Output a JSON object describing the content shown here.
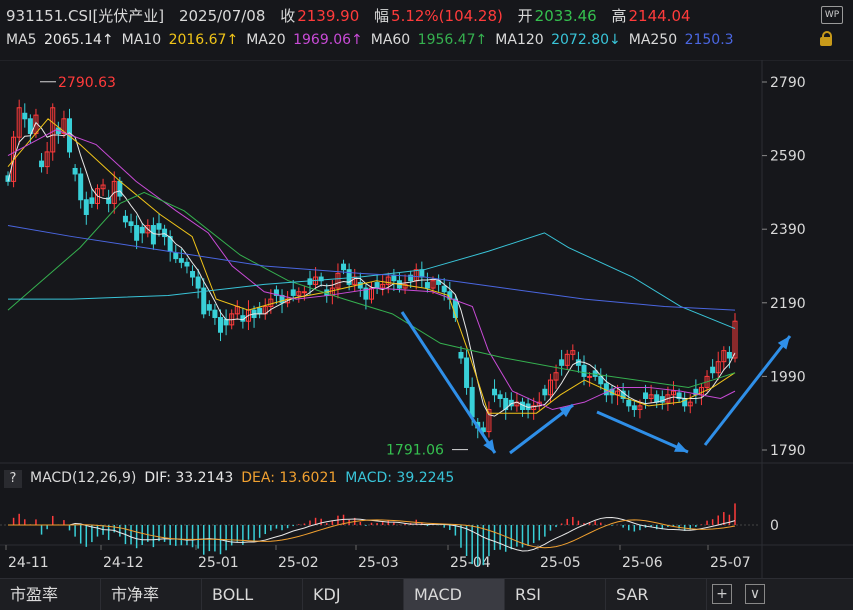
{
  "header": {
    "code": "931151.CSI[光伏产业]",
    "date": "2025/07/08",
    "close_label": "收",
    "close_value": "2139.90",
    "change_label": "幅",
    "change_value": "5.12%(104.28)",
    "open_label": "开",
    "open_value": "2033.46",
    "high_label": "高",
    "high_value": "2144.04",
    "ma": [
      {
        "label": "MA5",
        "value": "2065.14↑",
        "color": "#e8e8e8"
      },
      {
        "label": "MA10",
        "value": "2016.67↑",
        "color": "#f0c419"
      },
      {
        "label": "MA20",
        "value": "1969.06↑",
        "color": "#c84bd6"
      },
      {
        "label": "MA60",
        "value": "1956.47↑",
        "color": "#35b04f"
      },
      {
        "label": "MA120",
        "value": "2072.80↓",
        "color": "#39c4d8"
      },
      {
        "label": "MA250",
        "value": "2150.3",
        "color": "#4a66e0"
      }
    ],
    "value_colors": {
      "close": "#ff3b3b",
      "change": "#ff3b3b",
      "open": "#35c04f",
      "high": "#ff3b3b",
      "mavalue": "#f0c419",
      "ma10value": "#f0c419"
    }
  },
  "icons": {
    "wp": "WP",
    "lock": "lock-icon"
  },
  "chart_data": [
    {
      "type": "candlestick",
      "x_ticks": [
        "24-11",
        "24-12",
        "25-01",
        "25-02",
        "25-03",
        "25-04",
        "25-05",
        "25-06",
        "25-07"
      ],
      "y_ticks": [
        2790,
        2590,
        2390,
        2190,
        1990,
        1790
      ],
      "ylim": [
        1770,
        2830
      ],
      "annotations": [
        {
          "text": "2790.63",
          "value": 2790.63,
          "color": "#ff3b3b"
        },
        {
          "text": "1791.06",
          "value": 1791.06,
          "color": "#35c04f"
        }
      ],
      "close_series": [
        2520,
        2640,
        2720,
        2690,
        2650,
        2700,
        2560,
        2600,
        2720,
        2650,
        2690,
        2600,
        2540,
        2470,
        2430,
        2460,
        2500,
        2510,
        2460,
        2520,
        2480,
        2410,
        2400,
        2360,
        2380,
        2400,
        2350,
        2390,
        2370,
        2330,
        2310,
        2300,
        2290,
        2260,
        2230,
        2160,
        2170,
        2150,
        2110,
        2130,
        2160,
        2180,
        2140,
        2170,
        2150,
        2160,
        2180,
        2200,
        2210,
        2190,
        2200,
        2210,
        2220,
        2220,
        2240,
        2260,
        2250,
        2210,
        2230,
        2270,
        2280,
        2240,
        2260,
        2230,
        2200,
        2230,
        2230,
        2240,
        2260,
        2250,
        2230,
        2240,
        2250,
        2280,
        2260,
        2230,
        2250,
        2240,
        2220,
        2200,
        2150,
        2040,
        1960,
        1880,
        1850,
        1840,
        1900,
        1940,
        1930,
        1900,
        1910,
        1920,
        1900,
        1900,
        1910,
        1920,
        1940,
        1980,
        2000,
        2020,
        2050,
        2060,
        2020,
        1990,
        1990,
        1990,
        1970,
        1940,
        1940,
        1950,
        1930,
        1910,
        1900,
        1910,
        1930,
        1940,
        1920,
        1920,
        1940,
        1950,
        1930,
        1910,
        1920,
        1940,
        1960,
        1990,
        2000,
        2030,
        2060,
        2040,
        2140
      ],
      "series": [
        {
          "name": "MA5",
          "color": "#e8e8e8"
        },
        {
          "name": "MA10",
          "color": "#f0c419"
        },
        {
          "name": "MA20",
          "color": "#c84bd6"
        },
        {
          "name": "MA60",
          "color": "#35b04f"
        },
        {
          "name": "MA120",
          "color": "#39c4d8"
        },
        {
          "name": "MA250",
          "color": "#4a66e0"
        }
      ],
      "ma60": [
        [
          0,
          2170
        ],
        [
          45,
          2340
        ],
        [
          70,
          2460
        ],
        [
          85,
          2490
        ],
        [
          110,
          2440
        ],
        [
          145,
          2320
        ],
        [
          175,
          2250
        ],
        [
          210,
          2200
        ],
        [
          240,
          2160
        ],
        [
          270,
          2080
        ],
        [
          310,
          2040
        ],
        [
          360,
          2000
        ],
        [
          425,
          1960
        ],
        [
          440,
          1980
        ],
        [
          454,
          2000
        ]
      ],
      "ma120": [
        [
          0,
          2200
        ],
        [
          40,
          2200
        ],
        [
          100,
          2210
        ],
        [
          160,
          2240
        ],
        [
          220,
          2260
        ],
        [
          260,
          2280
        ],
        [
          300,
          2330
        ],
        [
          335,
          2380
        ],
        [
          350,
          2340
        ],
        [
          390,
          2260
        ],
        [
          420,
          2180
        ],
        [
          454,
          2120
        ]
      ],
      "ma250": [
        [
          0,
          2400
        ],
        [
          40,
          2370
        ],
        [
          100,
          2330
        ],
        [
          160,
          2290
        ],
        [
          220,
          2270
        ],
        [
          260,
          2260
        ],
        [
          310,
          2230
        ],
        [
          360,
          2200
        ],
        [
          410,
          2180
        ],
        [
          454,
          2170
        ]
      ],
      "ma20": [
        [
          0,
          2590
        ],
        [
          30,
          2660
        ],
        [
          55,
          2620
        ],
        [
          80,
          2520
        ],
        [
          105,
          2440
        ],
        [
          125,
          2380
        ],
        [
          140,
          2290
        ],
        [
          160,
          2220
        ],
        [
          180,
          2200
        ],
        [
          200,
          2210
        ],
        [
          230,
          2230
        ],
        [
          265,
          2220
        ],
        [
          290,
          2180
        ],
        [
          300,
          2060
        ],
        [
          315,
          1950
        ],
        [
          340,
          1900
        ],
        [
          360,
          1920
        ],
        [
          380,
          1960
        ],
        [
          400,
          1960
        ],
        [
          420,
          1950
        ],
        [
          445,
          1930
        ],
        [
          454,
          1950
        ]
      ],
      "ma10": [
        [
          0,
          2560
        ],
        [
          25,
          2690
        ],
        [
          45,
          2620
        ],
        [
          70,
          2520
        ],
        [
          95,
          2430
        ],
        [
          115,
          2370
        ],
        [
          130,
          2200
        ],
        [
          150,
          2170
        ],
        [
          175,
          2200
        ],
        [
          200,
          2220
        ],
        [
          230,
          2250
        ],
        [
          260,
          2230
        ],
        [
          275,
          2210
        ],
        [
          288,
          2050
        ],
        [
          300,
          1890
        ],
        [
          310,
          1890
        ],
        [
          330,
          1890
        ],
        [
          345,
          1940
        ],
        [
          360,
          1980
        ],
        [
          380,
          1940
        ],
        [
          400,
          1910
        ],
        [
          420,
          1920
        ],
        [
          440,
          1960
        ],
        [
          454,
          2000
        ]
      ]
    },
    {
      "type": "macd",
      "params": "MACD(12,26,9)",
      "DIF": 33.2143,
      "DEA": 13.6021,
      "MACD": 39.2245,
      "y_ticks": [
        0
      ]
    }
  ],
  "macd_header": {
    "help": "?",
    "title": "MACD(12,26,9)",
    "dif": "DIF: 33.2143",
    "dea": "DEA: 13.6021",
    "macd": "MACD: 39.2245",
    "colors": {
      "title": "#d9d9d9",
      "dif": "#e8e8e8",
      "dea": "#f0a030",
      "macd": "#39c4d8"
    }
  },
  "tabs": [
    {
      "label": "市盈率",
      "active": false
    },
    {
      "label": "市净率",
      "active": false
    },
    {
      "label": "BOLL",
      "active": false
    },
    {
      "label": "KDJ",
      "active": false
    },
    {
      "label": "MACD",
      "active": true
    },
    {
      "label": "RSI",
      "active": false
    },
    {
      "label": "SAR",
      "active": false
    }
  ],
  "tab_buttons": {
    "plus": "+",
    "dropdown": "∨"
  }
}
